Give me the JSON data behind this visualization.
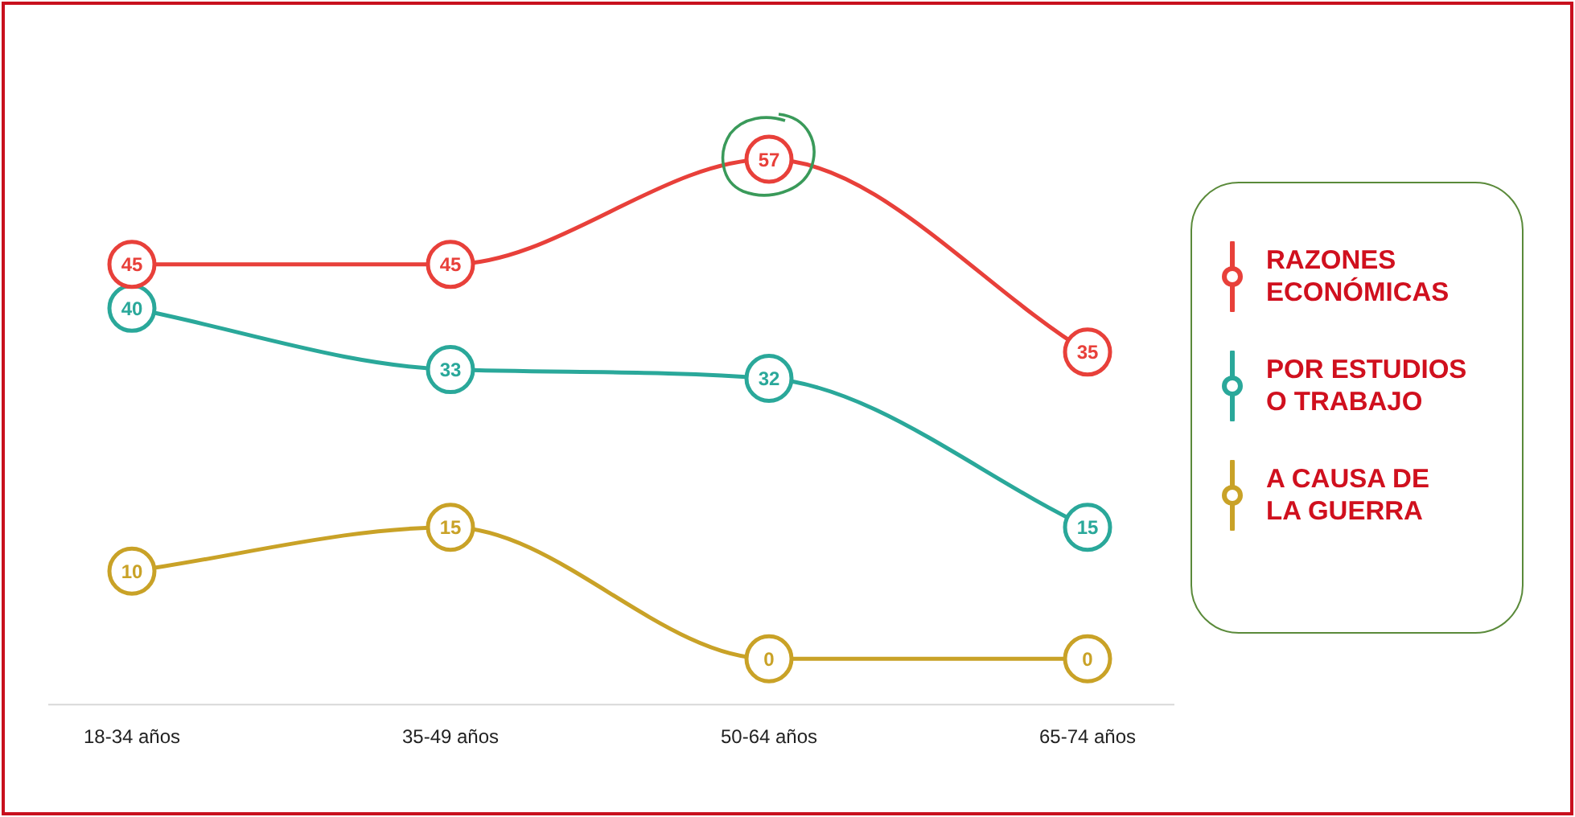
{
  "chart_data": {
    "type": "line",
    "categories": [
      "18-34 años",
      "35-49 años",
      "50-64 años",
      "65-74 años"
    ],
    "series": [
      {
        "name": "RAZONES ECONÓMICAS",
        "color": "#e8403a",
        "values": [
          45,
          45,
          57,
          35
        ]
      },
      {
        "name": "POR ESTUDIOS O TRABAJO",
        "color": "#2aa89a",
        "values": [
          40,
          33,
          32,
          15
        ]
      },
      {
        "name": "A CAUSA DE LA GUERRA",
        "color": "#c9a227",
        "values": [
          10,
          15,
          0,
          0
        ]
      }
    ],
    "data_labels": true,
    "legend": "right",
    "marker": "circle",
    "grid": false,
    "tick_labels": "x"
  }
}
